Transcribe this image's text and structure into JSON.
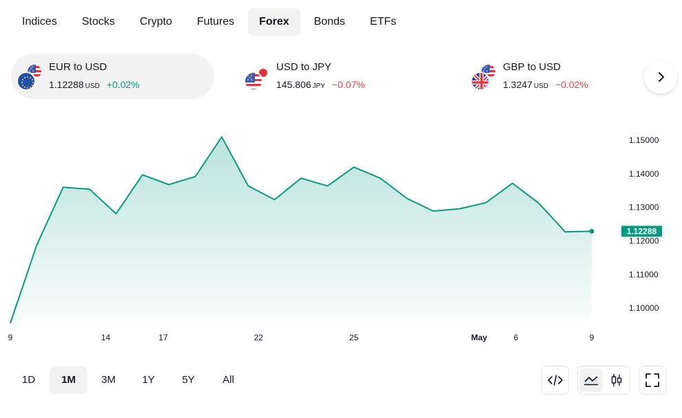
{
  "tabs": [
    {
      "label": "Indices"
    },
    {
      "label": "Stocks"
    },
    {
      "label": "Crypto"
    },
    {
      "label": "Futures"
    },
    {
      "label": "Forex",
      "active": true
    },
    {
      "label": "Bonds"
    },
    {
      "label": "ETFs"
    }
  ],
  "tickers": [
    {
      "name": "EUR to USD",
      "price": "1.12288",
      "currency": "USD",
      "change": "+0.02%",
      "direction": "up",
      "active": true,
      "flag_small": "usa-flag",
      "flag_large": "eu-flag"
    },
    {
      "name": "USD to JPY",
      "price": "145.806",
      "currency": "JPY",
      "change": "−0.07%",
      "direction": "down",
      "active": false,
      "flag_small": "japan-flag",
      "flag_large": "usa-flag"
    },
    {
      "name": "GBP to USD",
      "price": "1.3247",
      "currency": "USD",
      "change": "−0.02%",
      "direction": "down",
      "active": false,
      "flag_small": "usa-flag",
      "flag_large": "uk-flag"
    }
  ],
  "next_icon": "chevron-right-icon",
  "chart_data": {
    "type": "area",
    "title": "",
    "xlabel": "",
    "ylabel": "",
    "x_ticks": [
      "9",
      "14",
      "17",
      "22",
      "25",
      "May",
      "6",
      "9"
    ],
    "y_ticks": [
      "1.15000",
      "1.14000",
      "1.13000",
      "1.12000",
      "1.11000",
      "1.10000"
    ],
    "ylim": [
      1.0955,
      1.1535
    ],
    "y": [
      1.0955,
      1.1188,
      1.136,
      1.1354,
      1.1281,
      1.1397,
      1.1368,
      1.1392,
      1.151,
      1.1364,
      1.1323,
      1.1387,
      1.1364,
      1.142,
      1.1387,
      1.1327,
      1.1289,
      1.1296,
      1.1314,
      1.1372,
      1.1312,
      1.1227,
      1.12288
    ],
    "last_value": "1.12288",
    "line_color": "#089981",
    "fill_color": "#089981",
    "grid": false
  },
  "ranges": [
    {
      "label": "1D"
    },
    {
      "label": "1M",
      "active": true
    },
    {
      "label": "3M"
    },
    {
      "label": "1Y"
    },
    {
      "label": "5Y"
    },
    {
      "label": "All"
    }
  ],
  "tools": {
    "embed_icon": "code-icon",
    "area_icon": "area-chart-icon",
    "candle_icon": "candlestick-icon",
    "fullscreen_icon": "fullscreen-icon"
  },
  "colors": {
    "up": "#089981",
    "down": "#f23645",
    "accent": "#089981"
  }
}
